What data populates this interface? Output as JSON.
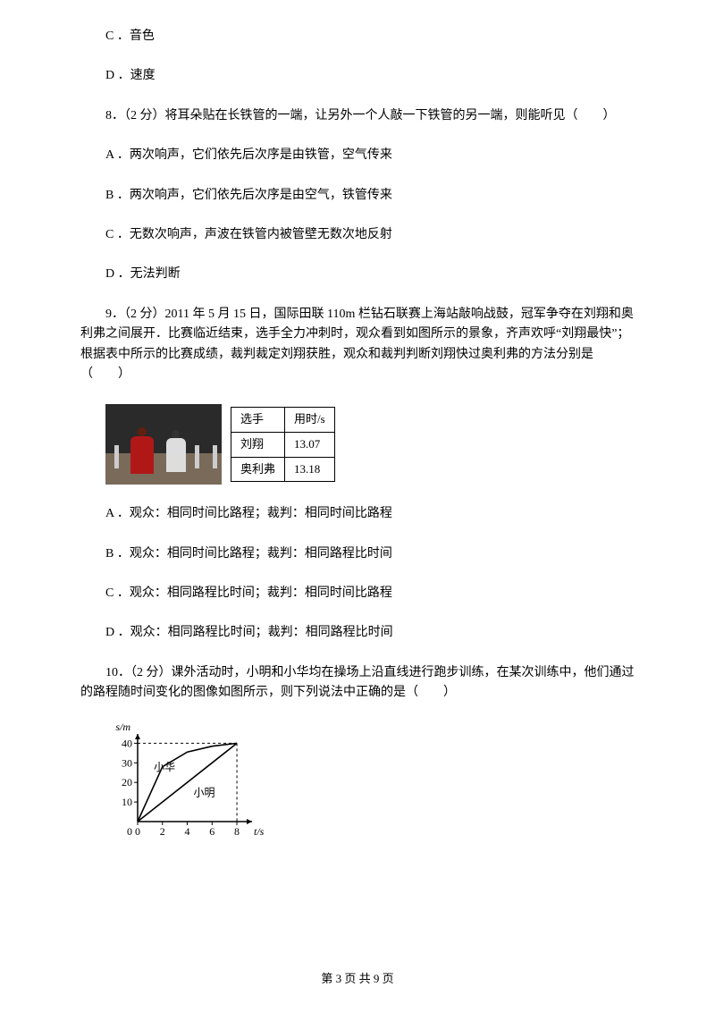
{
  "opts_prev": {
    "c": "C ．音色",
    "d": "D ．速度"
  },
  "q8": {
    "stem": "8．（2 分）将耳朵贴在长铁管的一端，让另外一个人敲一下铁管的另一端，则能听见（　　）",
    "a": "A ．两次响声，它们依先后次序是由铁管，空气传来",
    "b": "B ．两次响声，它们依先后次序是由空气，铁管传来",
    "c": "C ．无数次响声，声波在铁管内被管壁无数次地反射",
    "d": "D ．无法判断"
  },
  "q9": {
    "stem": "9．（2 分）2011 年 5 月 15 日，国际田联 110m 栏钻石联赛上海站敲响战鼓，冠军争夺在刘翔和奥利弗之间展开．比赛临近结束，选手全力冲刺时，观众看到如图所示的景象，齐声欢呼“刘翔最快”；根据表中所示的比赛成绩，裁判裁定刘翔获胜，观众和裁判判断刘翔快过奥利弗的方法分别是（　　）",
    "table": {
      "header": [
        "选手",
        "用时/s"
      ],
      "rows": [
        [
          "刘翔",
          "13.07"
        ],
        [
          "奥利弗",
          "13.18"
        ]
      ],
      "border_color": "#000000",
      "cell_padding": 3,
      "font_size": 13
    },
    "a": "A ．观众：相同时间比路程；裁判：相同时间比路程",
    "b": "B ．观众：相同时间比路程；裁判：相同路程比时间",
    "c": "C ．观众：相同路程比时间；裁判：相同时间比路程",
    "d": "D ．观众：相同路程比时间；裁判：相同路程比时间"
  },
  "q10": {
    "stem": "10．（2 分）课外活动时，小明和小华均在操场上沿直线进行跑步训练，在某次训练中，他们通过的路程随时间变化的图像如图所示，则下列说法中正确的是（　　）",
    "chart": {
      "type": "line",
      "x_label": "t/s",
      "y_label": "s/m",
      "y_label_top": "s/m",
      "xlim": [
        0,
        8.5
      ],
      "ylim": [
        0,
        42
      ],
      "x_ticks": [
        0,
        2,
        4,
        6,
        8
      ],
      "y_ticks": [
        0,
        10,
        20,
        30,
        40
      ],
      "series": [
        {
          "name": "小华",
          "points": [
            [
              0,
              0
            ],
            [
              2,
              28
            ],
            [
              4,
              35.5
            ],
            [
              6,
              38.5
            ],
            [
              8,
              40
            ]
          ],
          "label_xy": [
            1.3,
            26
          ]
        },
        {
          "name": "小明",
          "points": [
            [
              0,
              0
            ],
            [
              8,
              40
            ]
          ],
          "label_xy": [
            4.5,
            13
          ]
        }
      ],
      "line_color": "#000000",
      "line_width": 1.6,
      "axis_color": "#000000",
      "dash_color": "#000000",
      "font_size": 12,
      "background": "#ffffff"
    }
  },
  "footer": "第 3 页 共 9 页"
}
